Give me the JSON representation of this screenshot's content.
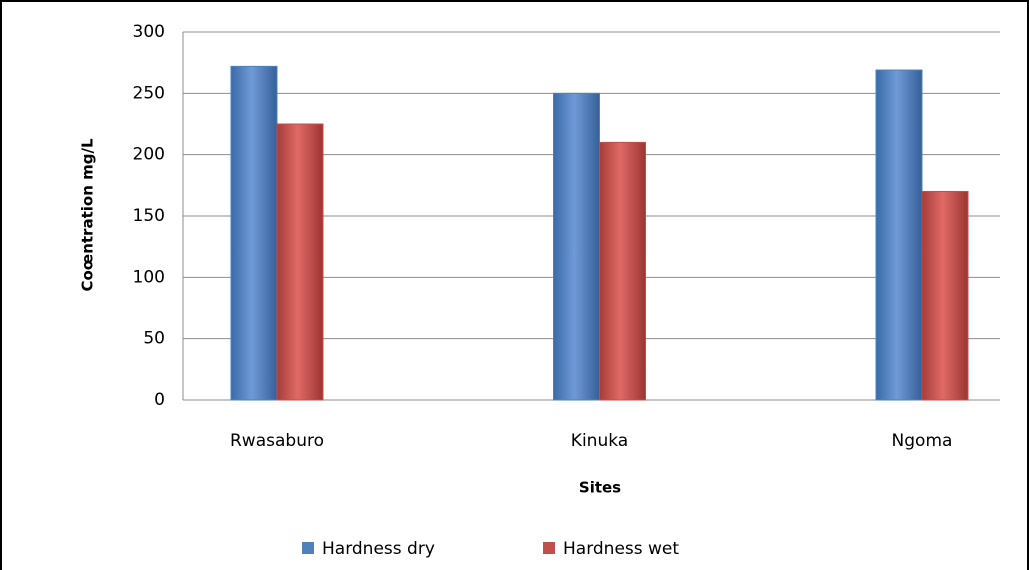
{
  "chart_data": {
    "type": "bar",
    "categories": [
      "Rwasaburo",
      "Kinuka",
      "Ngoma"
    ],
    "series": [
      {
        "name": "Hardness dry",
        "color": "#4f81bd",
        "values": [
          272,
          250,
          269
        ]
      },
      {
        "name": "Hardness wet",
        "color": "#c0504d",
        "values": [
          225,
          210,
          170
        ]
      }
    ],
    "x_label": "Sites",
    "y_label": "Coœntration mg/L",
    "ylim": [
      0,
      300
    ],
    "yticks": [
      0,
      50,
      100,
      150,
      200,
      250,
      300
    ],
    "grid": true
  }
}
